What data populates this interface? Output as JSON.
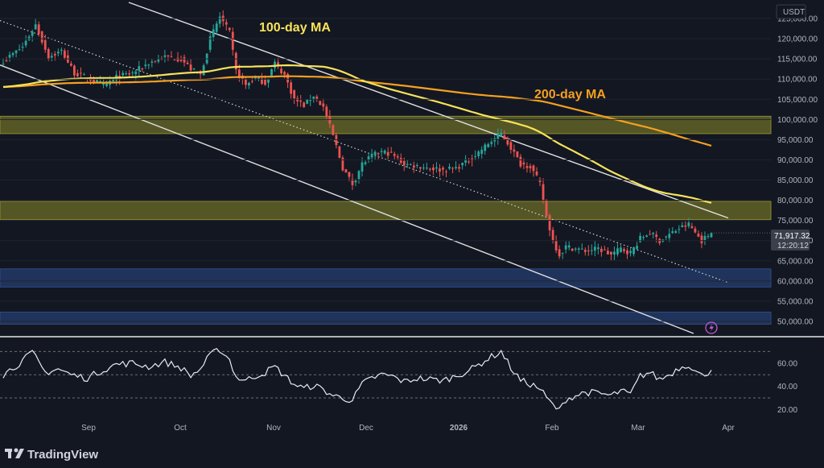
{
  "chart_data": {
    "type": "candlestick",
    "currency": "USDT",
    "price_axis": {
      "ylim": [
        47000,
        129000
      ],
      "ticks": [
        "125,000.00",
        "120,000.00",
        "115,000.00",
        "110,000.00",
        "105,000.00",
        "100,000.00",
        "95,000.00",
        "90,000.00",
        "85,000.00",
        "80,000.00",
        "75,000.00",
        "70,000.00",
        "65,000.00",
        "60,000.00",
        "55,000.00",
        "50,000.00"
      ]
    },
    "rsi_axis": {
      "ylim": [
        12,
        80
      ],
      "ticks": [
        "60.00",
        "40.00",
        "20.00"
      ],
      "bands": [
        70,
        50,
        30
      ]
    },
    "time_axis": {
      "labels": [
        "Sep",
        "Oct",
        "Nov",
        "Dec",
        "2026",
        "Feb",
        "Mar",
        "Apr"
      ],
      "bold_label": "2026"
    },
    "last_price": {
      "value": "71,917.32",
      "countdown": "12:20:12"
    },
    "annotations": {
      "ma100": "100-day MA",
      "ma200": "200-day MA"
    },
    "colors": {
      "up": "#26a69a",
      "down": "#ef5350",
      "ma100": "#f7e35a",
      "ma200": "#f5a020",
      "zone_yellow": "#8a8a2a",
      "zone_blue": "#2b4a8a",
      "rsi": "#e8eaf0",
      "channel": "#e0e0e0"
    },
    "zones": [
      {
        "kind": "resistance",
        "low": 96500,
        "high": 100800
      },
      {
        "kind": "resistance",
        "low": 75200,
        "high": 79700
      },
      {
        "kind": "support",
        "low": 58500,
        "high": 63000
      },
      {
        "kind": "support",
        "low": 49300,
        "high": 52300
      }
    ],
    "close_path": [
      [
        0,
        114500
      ],
      [
        6,
        118000
      ],
      [
        10,
        123500
      ],
      [
        14,
        115500
      ],
      [
        18,
        117000
      ],
      [
        22,
        111500
      ],
      [
        27,
        110000
      ],
      [
        31,
        108500
      ],
      [
        35,
        110500
      ],
      [
        40,
        111500
      ],
      [
        45,
        114000
      ],
      [
        50,
        115500
      ],
      [
        55,
        115000
      ],
      [
        58,
        112500
      ],
      [
        61,
        111000
      ],
      [
        64,
        120000
      ],
      [
        67,
        125500
      ],
      [
        70,
        121500
      ],
      [
        72,
        112000
      ],
      [
        75,
        108500
      ],
      [
        78,
        110500
      ],
      [
        81,
        109000
      ],
      [
        84,
        114000
      ],
      [
        87,
        111000
      ],
      [
        90,
        105000
      ],
      [
        93,
        103500
      ],
      [
        96,
        106000
      ],
      [
        99,
        103000
      ],
      [
        102,
        96000
      ],
      [
        105,
        88000
      ],
      [
        108,
        84000
      ],
      [
        111,
        89000
      ],
      [
        114,
        91000
      ],
      [
        117,
        92000
      ],
      [
        120,
        91500
      ],
      [
        124,
        89000
      ],
      [
        128,
        88500
      ],
      [
        132,
        88000
      ],
      [
        136,
        87500
      ],
      [
        140,
        88000
      ],
      [
        145,
        90500
      ],
      [
        150,
        94000
      ],
      [
        154,
        96500
      ],
      [
        157,
        93000
      ],
      [
        160,
        89000
      ],
      [
        163,
        88500
      ],
      [
        166,
        84000
      ],
      [
        168,
        76000
      ],
      [
        170,
        70000
      ],
      [
        172,
        66500
      ],
      [
        174,
        68500
      ],
      [
        177,
        68000
      ],
      [
        180,
        67500
      ],
      [
        184,
        68000
      ],
      [
        188,
        66500
      ],
      [
        191,
        68000
      ],
      [
        194,
        67000
      ],
      [
        197,
        70500
      ],
      [
        200,
        72000
      ],
      [
        203,
        70000
      ],
      [
        206,
        71500
      ],
      [
        209,
        73000
      ],
      [
        212,
        74000
      ],
      [
        214,
        72000
      ],
      [
        216,
        70000
      ],
      [
        219,
        71917
      ]
    ],
    "rsi_path": [
      [
        0,
        50
      ],
      [
        5,
        60
      ],
      [
        9,
        69
      ],
      [
        13,
        52
      ],
      [
        17,
        55
      ],
      [
        21,
        50
      ],
      [
        26,
        47
      ],
      [
        30,
        53
      ],
      [
        35,
        59
      ],
      [
        40,
        60
      ],
      [
        45,
        57
      ],
      [
        50,
        61
      ],
      [
        55,
        56
      ],
      [
        58,
        49
      ],
      [
        61,
        55
      ],
      [
        64,
        67
      ],
      [
        67,
        72
      ],
      [
        70,
        63
      ],
      [
        72,
        48
      ],
      [
        75,
        45
      ],
      [
        78,
        49
      ],
      [
        81,
        52
      ],
      [
        84,
        57
      ],
      [
        87,
        49
      ],
      [
        90,
        42
      ],
      [
        93,
        38
      ],
      [
        96,
        41
      ],
      [
        99,
        37
      ],
      [
        102,
        32
      ],
      [
        105,
        30
      ],
      [
        108,
        28
      ],
      [
        111,
        42
      ],
      [
        114,
        47
      ],
      [
        117,
        50
      ],
      [
        120,
        49
      ],
      [
        124,
        44
      ],
      [
        128,
        47
      ],
      [
        132,
        46
      ],
      [
        136,
        45
      ],
      [
        140,
        49
      ],
      [
        145,
        55
      ],
      [
        150,
        64
      ],
      [
        154,
        70
      ],
      [
        157,
        56
      ],
      [
        160,
        45
      ],
      [
        163,
        42
      ],
      [
        166,
        38
      ],
      [
        168,
        30
      ],
      [
        170,
        24
      ],
      [
        172,
        19
      ],
      [
        174,
        29
      ],
      [
        177,
        32
      ],
      [
        180,
        35
      ],
      [
        184,
        34
      ],
      [
        188,
        32
      ],
      [
        191,
        36
      ],
      [
        194,
        33
      ],
      [
        197,
        49
      ],
      [
        200,
        52
      ],
      [
        203,
        46
      ],
      [
        206,
        50
      ],
      [
        209,
        56
      ],
      [
        212,
        59
      ],
      [
        214,
        53
      ],
      [
        216,
        49
      ],
      [
        219,
        54
      ]
    ]
  },
  "branding": {
    "name": "TradingView"
  }
}
